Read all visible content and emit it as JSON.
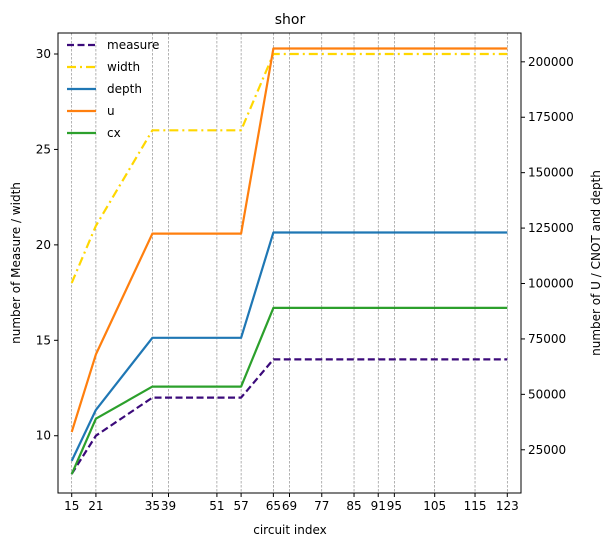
{
  "chart_data": {
    "type": "line",
    "title": "shor",
    "xlabel": "circuit index",
    "ylabel_left": "number of Measure / width",
    "ylabel_right": "number of U / CNOT and depth",
    "x": [
      15,
      21,
      35,
      39,
      51,
      57,
      65,
      69,
      77,
      85,
      91,
      95,
      105,
      115,
      123
    ],
    "x_tick_labels": [
      "15",
      "21",
      "35",
      "39",
      "51",
      "57",
      "65",
      "69",
      "77",
      "85",
      "91",
      "95",
      "105",
      "115",
      "123"
    ],
    "xlim": [
      11.6,
      126.4
    ],
    "ylim_left": [
      7.0,
      31.1
    ],
    "yticks_left": [
      10,
      15,
      20,
      25,
      30
    ],
    "ylim_right": [
      5500,
      213000
    ],
    "yticks_right": [
      25000,
      50000,
      75000,
      100000,
      125000,
      150000,
      175000,
      200000
    ],
    "grid": "vertical dashed lines at each circuit index",
    "legend_position": "top-left",
    "series": [
      {
        "name": "measure",
        "axis": "left",
        "style": "dashed",
        "color": "#3b0a7a",
        "values": [
          8,
          10,
          12,
          12,
          12,
          12,
          14,
          14,
          14,
          14,
          14,
          14,
          14,
          14,
          14
        ]
      },
      {
        "name": "width",
        "axis": "left",
        "style": "dashdot",
        "color": "#ffd700",
        "values": [
          18,
          21,
          26,
          26,
          26,
          26,
          30,
          30,
          30,
          30,
          30,
          30,
          30,
          30,
          30
        ]
      },
      {
        "name": "depth",
        "axis": "right",
        "style": "solid",
        "color": "#1f77b4",
        "values": [
          20000,
          43000,
          75500,
          75500,
          75500,
          75500,
          123000,
          123000,
          123000,
          123000,
          123000,
          123000,
          123000,
          123000,
          123000
        ]
      },
      {
        "name": "u",
        "axis": "right",
        "style": "solid",
        "color": "#ff7f0e",
        "values": [
          33000,
          68000,
          122500,
          122500,
          122500,
          122500,
          206000,
          206000,
          206000,
          206000,
          206000,
          206000,
          206000,
          206000,
          206000
        ]
      },
      {
        "name": "cx",
        "axis": "right",
        "style": "solid",
        "color": "#2ca02c",
        "values": [
          14000,
          39000,
          53500,
          53500,
          53500,
          53500,
          89000,
          89000,
          89000,
          89000,
          89000,
          89000,
          89000,
          89000,
          89000
        ]
      }
    ]
  }
}
